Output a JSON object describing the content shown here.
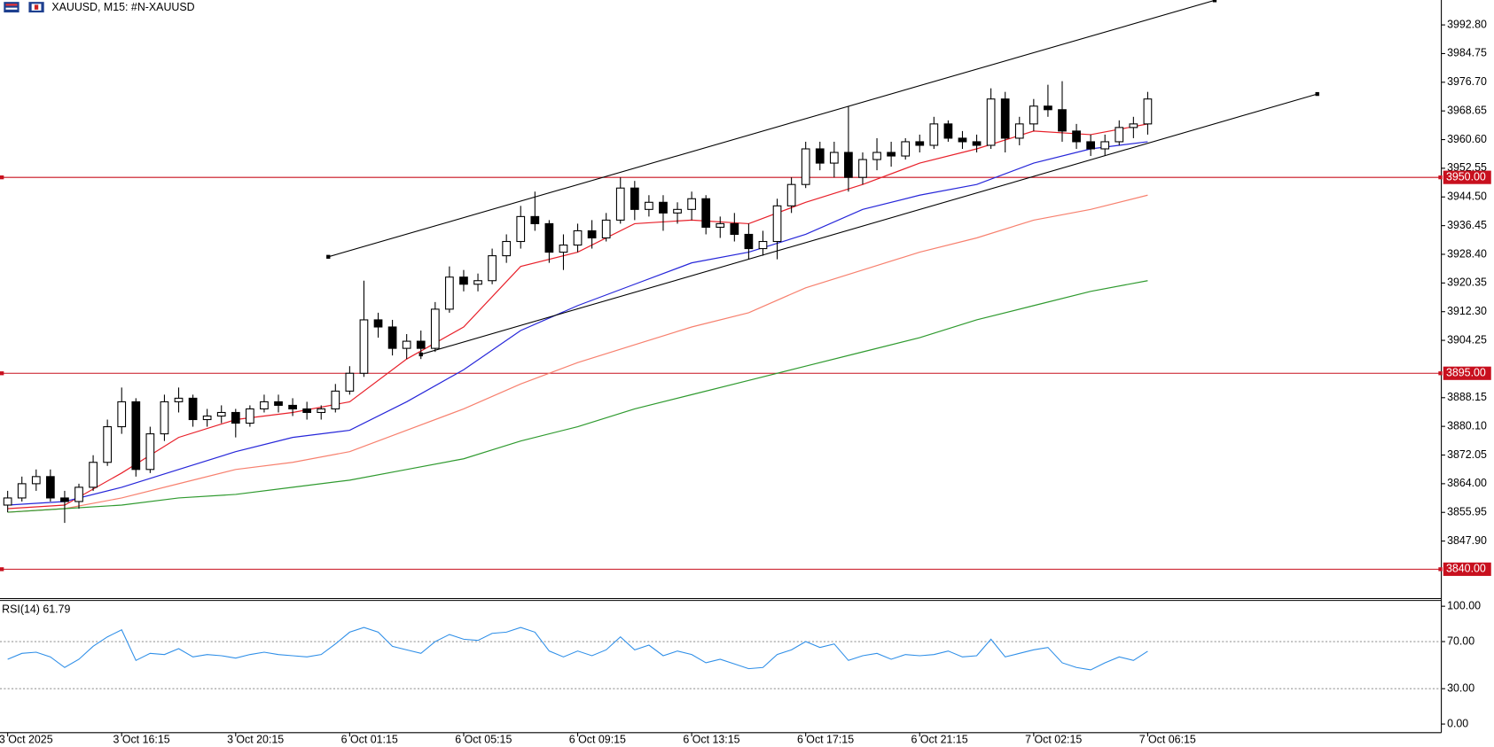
{
  "chart_data": [
    {
      "type": "candlestick",
      "title": "XAUUSD, M15:  #N-XAUUSD",
      "categories": [
        "3 Oct 2025",
        null,
        null,
        null,
        null,
        null,
        null,
        null,
        "3 Oct 16:15",
        null,
        null,
        null,
        null,
        null,
        null,
        null,
        "3 Oct 20:15",
        null,
        null,
        null,
        null,
        null,
        null,
        null,
        "6 Oct 01:15",
        null,
        null,
        null,
        null,
        null,
        null,
        null,
        "6 Oct 05:15",
        null,
        null,
        null,
        null,
        null,
        null,
        null,
        "6 Oct 09:15",
        null,
        null,
        null,
        null,
        null,
        null,
        null,
        "6 Oct 13:15",
        null,
        null,
        null,
        null,
        null,
        null,
        null,
        "6 Oct 17:15",
        null,
        null,
        null,
        null,
        null,
        null,
        null,
        "6 Oct 21:15",
        null,
        null,
        null,
        null,
        null,
        null,
        null,
        "7 Oct 02:15",
        null,
        null,
        null,
        null,
        null,
        null,
        null,
        "7 Oct 06:15"
      ],
      "open": [
        3858,
        3860,
        3864,
        3866,
        3860,
        3859,
        3863,
        3870,
        3880,
        3887,
        3868,
        3878,
        3887,
        3888,
        3882,
        3883,
        3884,
        3881,
        3885,
        3887,
        3886,
        3885,
        3884,
        3885,
        3890,
        3895,
        3910,
        3908,
        3902,
        3904,
        3902,
        3913,
        3922,
        3920,
        3921,
        3928,
        3932,
        3939,
        3937,
        3929,
        3931,
        3935,
        3933,
        3938,
        3947,
        3941,
        3943,
        3940,
        3941,
        3944,
        3936,
        3937,
        3934,
        3930,
        3932,
        3942,
        3948,
        3958,
        3954,
        3957,
        3950,
        3955,
        3957,
        3956,
        3960,
        3959,
        3965,
        3961,
        3960,
        3959,
        3972,
        3961,
        3965,
        3970,
        3969,
        3963,
        3960,
        3958,
        3960,
        3964,
        3965
      ],
      "high": [
        3862,
        3866,
        3868,
        3868,
        3862,
        3864,
        3872,
        3882,
        3891,
        3888,
        3880,
        3889,
        3891,
        3889,
        3885,
        3886,
        3885,
        3886,
        3889,
        3889,
        3888,
        3887,
        3886,
        3892,
        3897,
        3921,
        3912,
        3910,
        3906,
        3907,
        3915,
        3925,
        3924,
        3923,
        3930,
        3934,
        3942,
        3946,
        3938,
        3934,
        3937,
        3938,
        3940,
        3950,
        3949,
        3945,
        3945,
        3943,
        3946,
        3945,
        3939,
        3940,
        3937,
        3935,
        3944,
        3950,
        3960,
        3960,
        3960,
        3970,
        3957,
        3961,
        3960,
        3961,
        3962,
        3967,
        3966,
        3963,
        3962,
        3975,
        3974,
        3967,
        3972,
        3976,
        3977,
        3965,
        3962,
        3962,
        3966,
        3967,
        3974
      ],
      "low": [
        3856,
        3859,
        3862,
        3859,
        3853,
        3857,
        3862,
        3869,
        3878,
        3866,
        3867,
        3876,
        3884,
        3880,
        3880,
        3881,
        3877,
        3880,
        3884,
        3884,
        3883,
        3882,
        3882,
        3884,
        3889,
        3894,
        3905,
        3900,
        3899,
        3899,
        3901,
        3912,
        3918,
        3918,
        3920,
        3926,
        3930,
        3935,
        3926,
        3924,
        3929,
        3930,
        3932,
        3937,
        3938,
        3939,
        3935,
        3937,
        3938,
        3934,
        3933,
        3932,
        3927,
        3928,
        3927,
        3940,
        3947,
        3952,
        3950,
        3946,
        3948,
        3952,
        3953,
        3955,
        3957,
        3958,
        3960,
        3958,
        3957,
        3958,
        3957,
        3959,
        3963,
        3967,
        3960,
        3958,
        3956,
        3956,
        3959,
        3961,
        3962
      ],
      "close": [
        3860,
        3864,
        3866,
        3860,
        3859,
        3863,
        3870,
        3880,
        3887,
        3868,
        3878,
        3887,
        3888,
        3882,
        3883,
        3884,
        3881,
        3885,
        3887,
        3886,
        3885,
        3884,
        3885,
        3890,
        3895,
        3910,
        3908,
        3902,
        3904,
        3902,
        3913,
        3922,
        3920,
        3921,
        3928,
        3932,
        3939,
        3937,
        3929,
        3931,
        3935,
        3933,
        3938,
        3947,
        3941,
        3943,
        3940,
        3941,
        3944,
        3936,
        3937,
        3934,
        3930,
        3932,
        3942,
        3948,
        3958,
        3954,
        3957,
        3950,
        3955,
        3957,
        3956,
        3960,
        3959,
        3965,
        3961,
        3960,
        3959,
        3972,
        3961,
        3965,
        3970,
        3969,
        3963,
        3960,
        3958,
        3960,
        3964,
        3965,
        3972
      ],
      "up_color": "#ffffff",
      "down_color": "#000000",
      "outline_color": "#000000",
      "ylim": [
        3831.76,
        3999.79
      ],
      "yticks": [
        {
          "value": 3992.8,
          "label": "3992.80"
        },
        {
          "value": 3984.75,
          "label": "3984.75"
        },
        {
          "value": 3976.7,
          "label": "3976.70"
        },
        {
          "value": 3968.65,
          "label": "3968.65"
        },
        {
          "value": 3960.6,
          "label": "3960.60"
        },
        {
          "value": 3952.55,
          "label": "3952.55"
        },
        {
          "value": 3944.5,
          "label": "3944.50"
        },
        {
          "value": 3936.45,
          "label": "3936.45"
        },
        {
          "value": 3928.4,
          "label": "3928.40"
        },
        {
          "value": 3920.35,
          "label": "3920.35"
        },
        {
          "value": 3912.3,
          "label": "3912.30"
        },
        {
          "value": 3904.25,
          "label": "3904.25"
        },
        {
          "value": 3888.15,
          "label": "3888.15"
        },
        {
          "value": 3880.1,
          "label": "3880.10"
        },
        {
          "value": 3872.05,
          "label": "3872.05"
        },
        {
          "value": 3864,
          "label": "3864.00"
        },
        {
          "value": 3855.95,
          "label": "3855.95"
        },
        {
          "value": 3847.9,
          "label": "3847.90"
        }
      ],
      "overlays": [
        {
          "color": "#e8202a",
          "x": [
            0,
            4,
            8,
            12,
            16,
            20,
            24,
            28,
            32,
            36,
            40,
            44,
            48,
            52,
            56,
            60,
            64,
            68,
            72,
            76,
            80
          ],
          "values": [
            3857,
            3858,
            3867,
            3877,
            3882,
            3884,
            3887,
            3899,
            3908,
            3925,
            3929,
            3937,
            3938,
            3937,
            3943,
            3948,
            3954,
            3958,
            3963,
            3962,
            3965
          ]
        },
        {
          "color": "#2626d9",
          "x": [
            0,
            4,
            8,
            12,
            16,
            20,
            24,
            28,
            32,
            36,
            40,
            44,
            48,
            52,
            56,
            60,
            64,
            68,
            72,
            76,
            80
          ],
          "values": [
            3858,
            3859,
            3863,
            3868,
            3873,
            3877,
            3879,
            3887,
            3896,
            3907,
            3914,
            3920,
            3926,
            3929,
            3934,
            3941,
            3945,
            3948,
            3954,
            3958,
            3960
          ]
        },
        {
          "color": "#f7806e",
          "x": [
            0,
            4,
            8,
            12,
            16,
            20,
            24,
            28,
            32,
            36,
            40,
            44,
            48,
            52,
            56,
            60,
            64,
            68,
            72,
            76,
            80
          ],
          "values": [
            3856,
            3857,
            3860,
            3864,
            3868,
            3870,
            3873,
            3879,
            3885,
            3892,
            3898,
            3903,
            3908,
            3912,
            3919,
            3924,
            3929,
            3933,
            3938,
            3941,
            3945
          ]
        },
        {
          "color": "#2f9a2f",
          "x": [
            0,
            4,
            8,
            12,
            16,
            20,
            24,
            28,
            32,
            36,
            40,
            44,
            48,
            52,
            56,
            60,
            64,
            68,
            72,
            76,
            80
          ],
          "values": [
            3856,
            3857,
            3858,
            3860,
            3861,
            3863,
            3865,
            3868,
            3871,
            3876,
            3880,
            3885,
            3889,
            3893,
            3897,
            3901,
            3905,
            3910,
            3914,
            3918,
            3921
          ]
        }
      ],
      "trendlines": [
        {
          "color": "#000000",
          "x": [
            22.5,
            84.7
          ],
          "values": [
            3927.7,
            3999.7
          ]
        },
        {
          "color": "#000000",
          "x": [
            29,
            91.9
          ],
          "values": [
            3900.3,
            3973.4
          ]
        }
      ],
      "hlines": [
        {
          "value": 3950,
          "label": "3950.00",
          "color": "#c8101e"
        },
        {
          "value": 3895,
          "label": "3895.00",
          "color": "#c8101e"
        },
        {
          "value": 3840,
          "label": "3840.00",
          "color": "#c8101e"
        }
      ]
    },
    {
      "type": "line",
      "title": "RSI(14) 61.79",
      "color": "#2f8fe8",
      "values": [
        55,
        60,
        61,
        57,
        48,
        55,
        66,
        74,
        80,
        54,
        60,
        59,
        64,
        57,
        59,
        58,
        56,
        59,
        61,
        59,
        58,
        57,
        59,
        68,
        78,
        82,
        78,
        66,
        63,
        60,
        70,
        76,
        72,
        71,
        77,
        78,
        82,
        78,
        62,
        57,
        62,
        58,
        63,
        74,
        63,
        67,
        58,
        62,
        59,
        52,
        55,
        51,
        47,
        48,
        59,
        63,
        70,
        65,
        68,
        54,
        58,
        60,
        55,
        59,
        58,
        59,
        62,
        57,
        58,
        72,
        57,
        60,
        63,
        65,
        52,
        48,
        46,
        52,
        57,
        54,
        61.79
      ],
      "ylim": [
        -7.3,
        104.9
      ],
      "yticks": [
        {
          "value": 100,
          "label": "100.00"
        },
        {
          "value": 70,
          "label": "70.00"
        },
        {
          "value": 30,
          "label": "30.00"
        },
        {
          "value": 0,
          "label": "0.00"
        }
      ],
      "levels": [
        70,
        30
      ]
    }
  ]
}
